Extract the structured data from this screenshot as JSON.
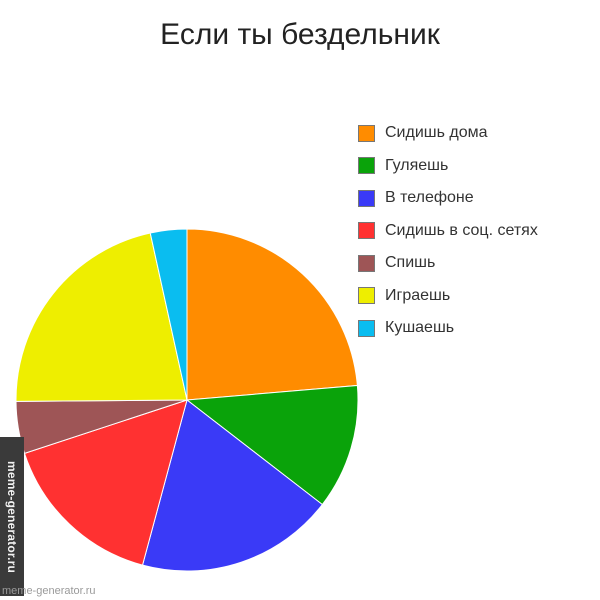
{
  "chart_data": {
    "type": "pie",
    "title": "Если ты бездельник",
    "legend_position": "right",
    "slices": [
      {
        "label": "Сидишь дома",
        "value": 24,
        "color": "#ff8c00"
      },
      {
        "label": "Гуляешь",
        "value": 12,
        "color": "#0aa30a"
      },
      {
        "label": "В телефоне",
        "value": 19,
        "color": "#3a3af7"
      },
      {
        "label": "Сидишь в соц. сетях",
        "value": 16,
        "color": "#ff3131"
      },
      {
        "label": "Спишь",
        "value": 5,
        "color": "#9e5556"
      },
      {
        "label": "Играешь",
        "value": 22,
        "color": "#eeee00"
      },
      {
        "label": "Кушаешь",
        "value": 3.5,
        "color": "#0abdf0"
      }
    ]
  },
  "watermark": {
    "side_text": "meme-generator.ru",
    "bottom_text": "meme-generator.ru"
  }
}
